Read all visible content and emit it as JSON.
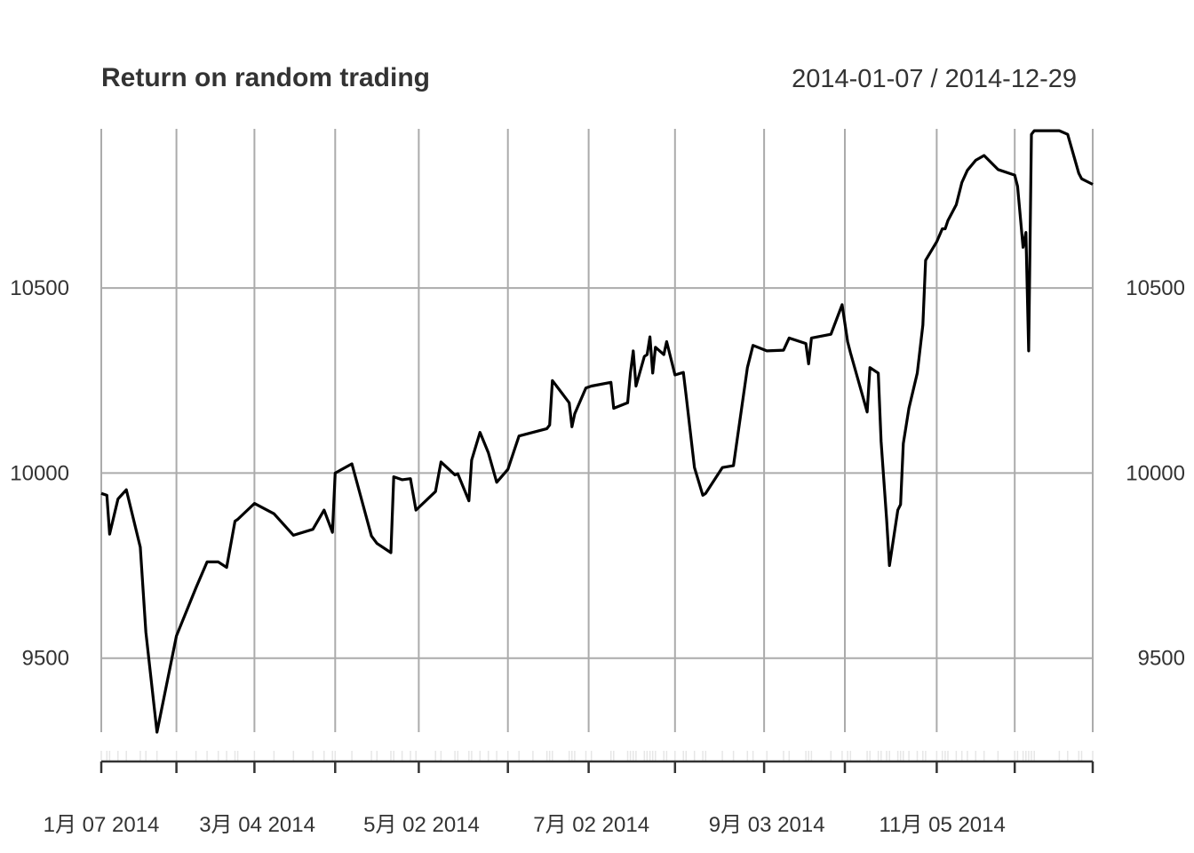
{
  "chart_data": {
    "type": "line",
    "title": "Return on random trading",
    "date_range_label": "2014-01-07 / 2014-12-29",
    "xlabel": "",
    "ylabel": "",
    "ylim": [
      9300,
      10930
    ],
    "y_ticks": [
      9500,
      10000,
      10500
    ],
    "y_tick_labels": [
      "9500",
      "10000",
      "10500"
    ],
    "x_ticks": [
      "2014-01-07",
      "2014-03-04",
      "2014-05-02",
      "2014-07-02",
      "2014-09-03",
      "2014-11-05"
    ],
    "x_tick_labels": [
      "1月 07 2014",
      "3月 04 2014",
      "5月 02 2014",
      "7月 02 2014",
      "9月 03 2014",
      "11月 05 2014"
    ],
    "grid_dates": [
      "2014-01-07",
      "2014-02-03",
      "2014-03-03",
      "2014-04-01",
      "2014-05-01",
      "2014-06-02",
      "2014-07-01",
      "2014-08-01",
      "2014-09-02",
      "2014-10-01",
      "2014-11-03",
      "2014-12-01",
      "2014-12-29"
    ],
    "grid": true,
    "series": [
      {
        "color": "#000000",
        "x": [
          "2014-01-07",
          "2014-01-09",
          "2014-01-10",
          "2014-01-13",
          "2014-01-16",
          "2014-01-21",
          "2014-01-23",
          "2014-01-27",
          "2014-02-03",
          "2014-02-10",
          "2014-02-14",
          "2014-02-18",
          "2014-02-21",
          "2014-02-24",
          "2014-02-25",
          "2014-03-03",
          "2014-03-10",
          "2014-03-17",
          "2014-03-24",
          "2014-03-28",
          "2014-03-31",
          "2014-04-01",
          "2014-04-07",
          "2014-04-14",
          "2014-04-16",
          "2014-04-21",
          "2014-04-22",
          "2014-04-25",
          "2014-04-28",
          "2014-04-30",
          "2014-05-07",
          "2014-05-09",
          "2014-05-14",
          "2014-05-15",
          "2014-05-19",
          "2014-05-20",
          "2014-05-23",
          "2014-05-26",
          "2014-05-29",
          "2014-06-02",
          "2014-06-06",
          "2014-06-11",
          "2014-06-16",
          "2014-06-17",
          "2014-06-18",
          "2014-06-24",
          "2014-06-25",
          "2014-06-26",
          "2014-06-30",
          "2014-07-02",
          "2014-07-09",
          "2014-07-10",
          "2014-07-15",
          "2014-07-16",
          "2014-07-17",
          "2014-07-18",
          "2014-07-21",
          "2014-07-22",
          "2014-07-23",
          "2014-07-24",
          "2014-07-25",
          "2014-07-28",
          "2014-07-29",
          "2014-08-01",
          "2014-08-04",
          "2014-08-05",
          "2014-08-08",
          "2014-08-11",
          "2014-08-12",
          "2014-08-18",
          "2014-08-22",
          "2014-08-27",
          "2014-08-29",
          "2014-09-03",
          "2014-09-09",
          "2014-09-11",
          "2014-09-17",
          "2014-09-18",
          "2014-09-19",
          "2014-09-26",
          "2014-09-30",
          "2014-10-02",
          "2014-10-03",
          "2014-10-09",
          "2014-10-10",
          "2014-10-13",
          "2014-10-14",
          "2014-10-16",
          "2014-10-17",
          "2014-10-20",
          "2014-10-21",
          "2014-10-22",
          "2014-10-24",
          "2014-10-27",
          "2014-10-29",
          "2014-10-30",
          "2014-11-03",
          "2014-11-05",
          "2014-11-06",
          "2014-11-07",
          "2014-11-10",
          "2014-11-12",
          "2014-11-14",
          "2014-11-17",
          "2014-11-20",
          "2014-11-25",
          "2014-12-01",
          "2014-12-02",
          "2014-12-04",
          "2014-12-05",
          "2014-12-06",
          "2014-12-07",
          "2014-12-08",
          "2014-12-17",
          "2014-12-20",
          "2014-12-24",
          "2014-12-25",
          "2014-12-29"
        ],
        "values": [
          9945,
          9940,
          9835,
          9930,
          9955,
          9800,
          9570,
          9300,
          9560,
          9690,
          9760,
          9760,
          9745,
          9870,
          9875,
          9918,
          9890,
          9832,
          9848,
          9900,
          9840,
          10000,
          10025,
          9830,
          9810,
          9785,
          9990,
          9982,
          9985,
          9900,
          9950,
          10030,
          9995,
          9998,
          9925,
          10035,
          10110,
          10055,
          9975,
          10010,
          10100,
          10110,
          10120,
          10130,
          10250,
          10190,
          10125,
          10160,
          10230,
          10235,
          10245,
          10175,
          10190,
          10270,
          10330,
          10235,
          10315,
          10320,
          10368,
          10270,
          10340,
          10320,
          10355,
          10265,
          10272,
          10210,
          10015,
          9940,
          9945,
          10015,
          10020,
          10285,
          10345,
          10330,
          10332,
          10365,
          10350,
          10295,
          10365,
          10375,
          10455,
          10355,
          10325,
          10165,
          10285,
          10270,
          10085,
          9875,
          9750,
          9900,
          9915,
          10080,
          10175,
          10270,
          10400,
          10575,
          10625,
          10660,
          10660,
          10682,
          10725,
          10785,
          10818,
          10845,
          10858,
          10820,
          10805,
          10775,
          10610,
          10650,
          10330,
          10915,
          10925,
          10925,
          10915,
          10810,
          10795,
          10780
        ]
      }
    ]
  }
}
